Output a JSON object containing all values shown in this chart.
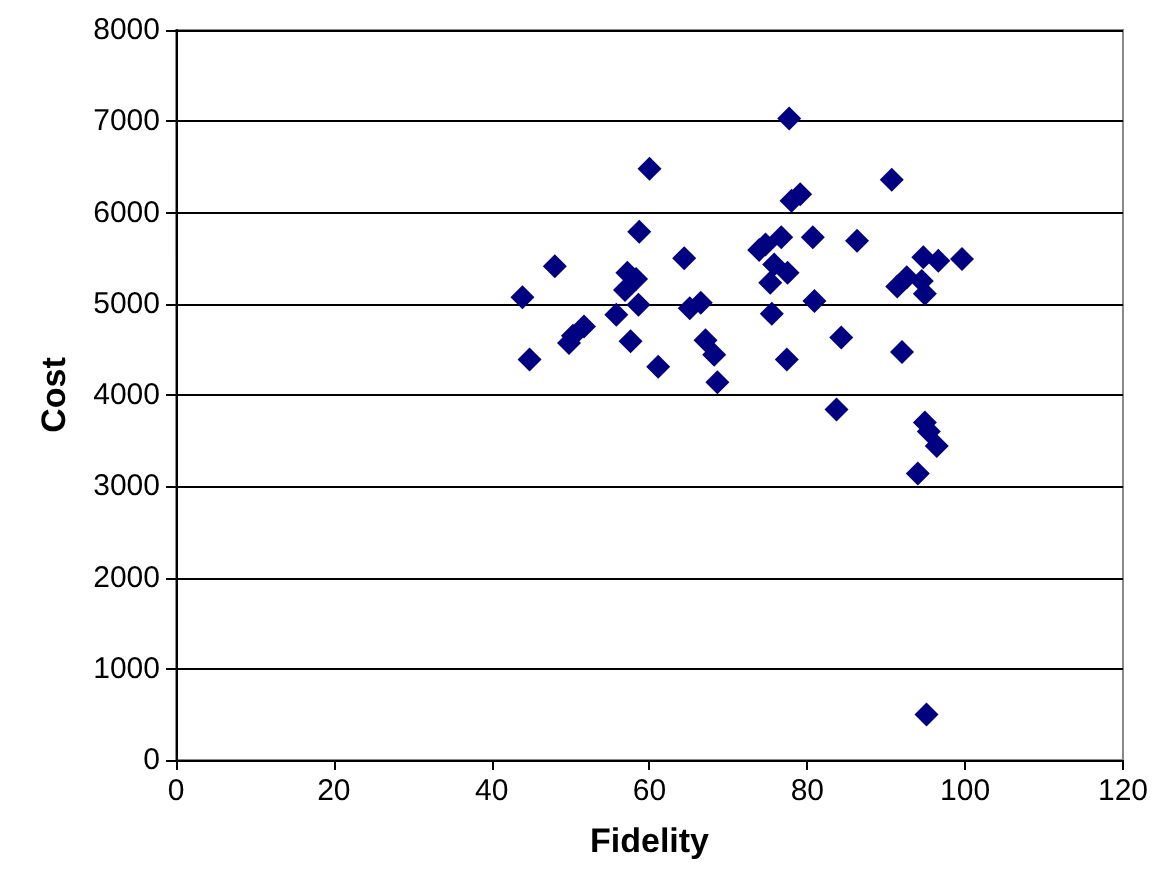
{
  "chart_data": {
    "type": "scatter",
    "xlabel": "Fidelity",
    "ylabel": "Cost",
    "marker": "diamond",
    "grid": "y",
    "xlim": [
      0,
      120
    ],
    "xticks": [
      0,
      20,
      40,
      60,
      80,
      100,
      120
    ],
    "ylim": [
      0,
      8000
    ],
    "yticks": [
      0,
      1000,
      2000,
      3000,
      4000,
      5000,
      6000,
      7000,
      8000
    ],
    "series": [
      {
        "color": "#000080",
        "x": [
          43.9,
          44.8,
          48.0,
          49.8,
          50.3,
          51.7,
          55.8,
          57.2,
          56.9,
          57.6,
          58.3,
          58.6,
          58.7,
          60.0,
          61.1,
          64.4,
          65.1,
          66.5,
          67.1,
          68.2,
          68.6,
          73.9,
          74.7,
          75.3,
          75.5,
          75.8,
          76.7,
          77.5,
          77.7,
          77.4,
          78.0,
          79.1,
          80.7,
          80.9,
          83.7,
          84.3,
          86.3,
          90.7,
          91.4,
          92.0,
          92.6,
          94.0,
          94.5,
          94.9,
          94.7,
          94.9,
          95.4,
          96.4,
          95.1,
          96.6,
          99.6
        ],
        "values": [
          5070,
          4390,
          5410,
          4570,
          4650,
          4750,
          4880,
          5340,
          5150,
          4590,
          5270,
          4990,
          5790,
          6480,
          4310,
          5500,
          4950,
          5010,
          4600,
          4440,
          4140,
          5590,
          5650,
          5230,
          4890,
          5430,
          5730,
          5340,
          7030,
          4390,
          6130,
          6200,
          5730,
          5030,
          3840,
          4630,
          5690,
          6360,
          5190,
          4470,
          5290,
          3140,
          5250,
          5110,
          5510,
          3700,
          3600,
          3440,
          500,
          5470,
          5490
        ]
      }
    ]
  }
}
